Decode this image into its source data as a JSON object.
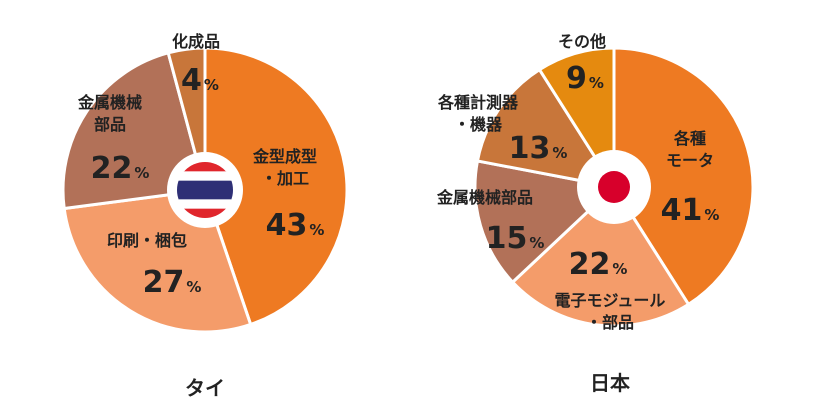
{
  "chart_data": [
    {
      "type": "pie",
      "title": "タイ",
      "categories": [
        "金型成型・加工",
        "印刷・梱包",
        "金属機械部品",
        "化成品"
      ],
      "values": [
        43,
        27,
        22,
        4
      ],
      "value_suffix": "%",
      "label_lines": [
        [
          "金型成型",
          "・加工"
        ],
        [
          "印刷・梱包"
        ],
        [
          "金属機械",
          "部品"
        ],
        [
          "化成品"
        ]
      ],
      "colors": [
        "#EE7A22",
        "#F49C6A",
        "#B27158",
        "#C8763A"
      ],
      "flag": "thailand"
    },
    {
      "type": "pie",
      "title": "日本",
      "categories": [
        "各種モータ",
        "電子モジュール・部品",
        "金属機械部品",
        "各種計測器・機器",
        "その他"
      ],
      "values": [
        41,
        22,
        15,
        13,
        9
      ],
      "value_suffix": "%",
      "label_lines": [
        [
          "各種",
          "モータ"
        ],
        [
          "電子モジュール",
          "・部品"
        ],
        [
          "金属機械部品"
        ],
        [
          "各種計測器",
          "・機器"
        ],
        [
          "その他"
        ]
      ],
      "colors": [
        "#EE7A22",
        "#F49C6A",
        "#B27158",
        "#C8763A",
        "#E58A0F"
      ],
      "flag": "japan"
    }
  ]
}
